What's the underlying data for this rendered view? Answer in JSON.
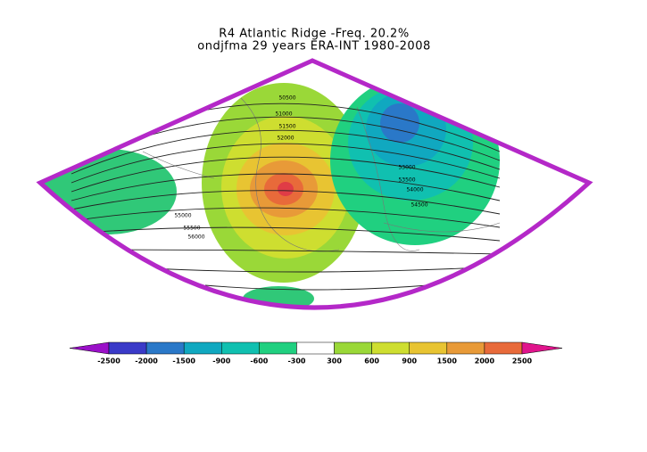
{
  "title": "R4 Atlantic Ridge -Freq. 20.2%",
  "subtitle": "ondjfma 29 years ERA-INT 1980-2008",
  "contour_labels": [
    "50500",
    "51000",
    "51500",
    "52000",
    "53000",
    "53500",
    "54000",
    "54500",
    "55000",
    "55500",
    "56000"
  ],
  "colorbar": {
    "ticks": [
      -2500,
      -2000,
      -1500,
      -900,
      -600,
      -300,
      300,
      600,
      900,
      1500,
      2000,
      2500
    ],
    "colors": [
      "#9a10c8",
      "#3a3ac8",
      "#2a78c8",
      "#10a8c0",
      "#10c0b0",
      "#20d080",
      "#ffffff",
      "#9ad838",
      "#cede30",
      "#e8c432",
      "#e89a38",
      "#e86a3a",
      "#e03c46",
      "#e0148c"
    ]
  }
}
